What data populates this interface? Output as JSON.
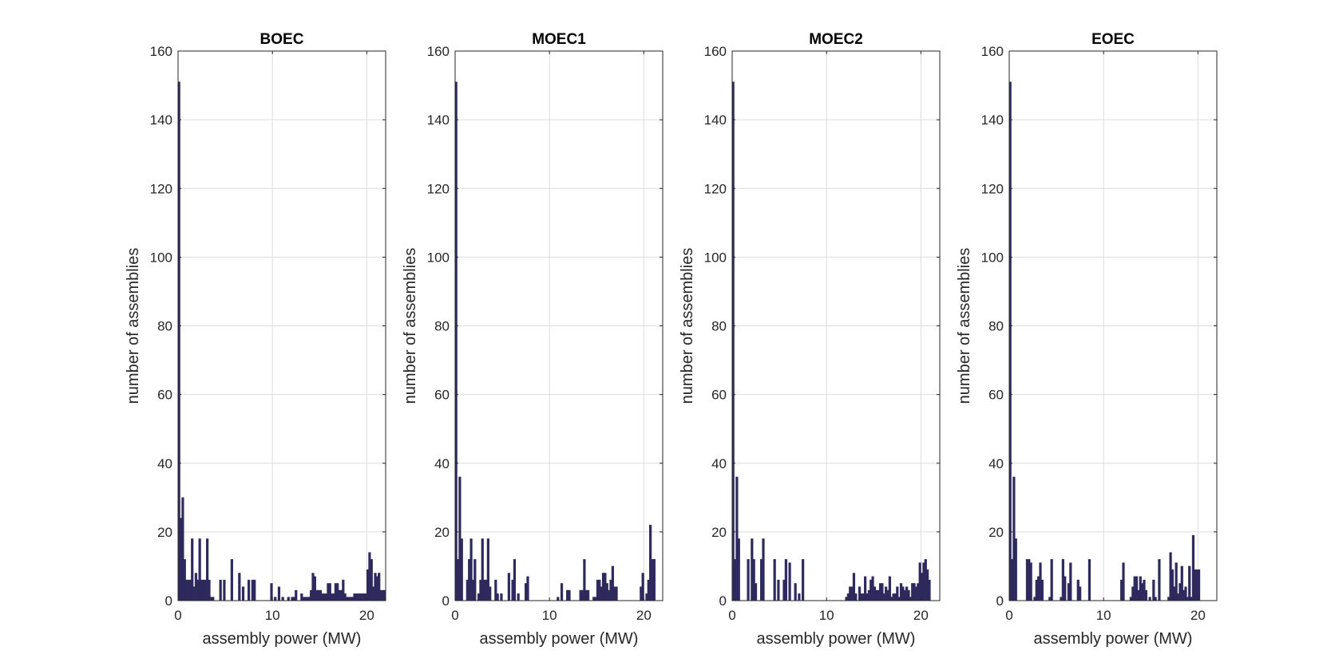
{
  "chart_data": [
    {
      "type": "bar",
      "title": "BOEC",
      "xlabel": "assembly power (MW)",
      "ylabel": "number of assemblies",
      "xlim": [
        0,
        22
      ],
      "ylim": [
        0,
        160
      ],
      "xticks": [
        0,
        10,
        20
      ],
      "yticks": [
        0,
        20,
        40,
        60,
        80,
        100,
        120,
        140,
        160
      ],
      "grid": true,
      "bar_width": 0.22,
      "color": "#2e2a5e",
      "x": [
        0.1,
        0.3,
        0.5,
        0.7,
        0.9,
        1.1,
        1.3,
        1.5,
        1.7,
        1.9,
        2.1,
        2.3,
        2.5,
        2.7,
        2.9,
        3.1,
        3.3,
        3.5,
        3.7,
        4.5,
        4.9,
        5.7,
        6.5,
        6.9,
        7.5,
        7.9,
        8.1,
        9.9,
        10.3,
        10.7,
        11.1,
        11.7,
        12.1,
        12.3,
        12.5,
        13.1,
        13.3,
        13.5,
        13.7,
        13.9,
        14.1,
        14.3,
        14.5,
        14.7,
        14.9,
        15.1,
        15.3,
        15.5,
        15.7,
        15.9,
        16.1,
        16.3,
        16.5,
        16.7,
        16.9,
        17.1,
        17.3,
        17.5,
        17.7,
        17.9,
        18.1,
        18.3,
        18.5,
        18.7,
        18.9,
        19.1,
        19.3,
        19.5,
        19.7,
        19.9,
        20.1,
        20.3,
        20.5,
        20.7,
        20.9,
        21.1,
        21.3,
        21.5,
        21.7,
        21.9
      ],
      "values": [
        151,
        24,
        30,
        12,
        6,
        6,
        6,
        18,
        4,
        8,
        6,
        18,
        6,
        6,
        6,
        18,
        6,
        1,
        1,
        6,
        6,
        12,
        8,
        4,
        6,
        6,
        6,
        5,
        1,
        4,
        1,
        1,
        1,
        1,
        3,
        2,
        1,
        1,
        1,
        1,
        3,
        8,
        7,
        3,
        3,
        3,
        2,
        2,
        2,
        5,
        5,
        2,
        2,
        5,
        5,
        3,
        3,
        6,
        2,
        1,
        1,
        1,
        1,
        2,
        2,
        2,
        2,
        2,
        2,
        2,
        9,
        14,
        12,
        4,
        8,
        7,
        8,
        3,
        3,
        3
      ]
    },
    {
      "type": "bar",
      "title": "MOEC1",
      "xlabel": "assembly power (MW)",
      "ylabel": "number of assemblies",
      "xlim": [
        0,
        22
      ],
      "ylim": [
        0,
        160
      ],
      "xticks": [
        0,
        10,
        20
      ],
      "yticks": [
        0,
        20,
        40,
        60,
        80,
        100,
        120,
        140,
        160
      ],
      "grid": true,
      "bar_width": 0.22,
      "color": "#2e2a5e",
      "x": [
        0.1,
        0.3,
        0.5,
        0.7,
        1.3,
        1.5,
        1.7,
        1.9,
        2.1,
        2.5,
        2.7,
        2.9,
        3.1,
        3.3,
        3.5,
        3.7,
        4.3,
        4.5,
        4.9,
        5.7,
        6.1,
        6.3,
        6.7,
        7.5,
        7.7,
        10.9,
        11.3,
        11.9,
        12.1,
        13.3,
        13.5,
        13.7,
        13.9,
        14.1,
        14.7,
        14.9,
        15.1,
        15.3,
        15.5,
        15.7,
        15.9,
        16.1,
        16.3,
        16.5,
        16.7,
        16.9,
        17.1,
        19.7,
        19.9,
        20.3,
        20.5,
        20.7,
        20.9,
        21.1
      ],
      "values": [
        151,
        12,
        36,
        18,
        6,
        12,
        18,
        6,
        12,
        2,
        6,
        18,
        6,
        6,
        18,
        4,
        6,
        2,
        2,
        8,
        6,
        12,
        2,
        5,
        7,
        1,
        5,
        3,
        3,
        3,
        3,
        12,
        3,
        3,
        1,
        1,
        6,
        6,
        4,
        8,
        8,
        5,
        3,
        6,
        10,
        4,
        4,
        4,
        8,
        2,
        6,
        22,
        12,
        12
      ]
    },
    {
      "type": "bar",
      "title": "MOEC2",
      "xlabel": "assembly power (MW)",
      "ylabel": "number of assemblies",
      "xlim": [
        0,
        22
      ],
      "ylim": [
        0,
        160
      ],
      "xticks": [
        0,
        10,
        20
      ],
      "yticks": [
        0,
        20,
        40,
        60,
        80,
        100,
        120,
        140,
        160
      ],
      "grid": true,
      "bar_width": 0.22,
      "color": "#2e2a5e",
      "x": [
        0.1,
        0.3,
        0.5,
        0.7,
        1.7,
        2.1,
        2.3,
        2.5,
        3.1,
        3.3,
        4.5,
        4.9,
        5.5,
        5.7,
        6.1,
        6.7,
        7.1,
        7.5,
        12.1,
        12.3,
        12.5,
        12.7,
        12.9,
        13.1,
        13.5,
        13.7,
        13.9,
        14.1,
        14.3,
        14.5,
        14.7,
        14.9,
        15.1,
        15.3,
        15.5,
        15.7,
        15.9,
        16.1,
        16.3,
        16.5,
        16.7,
        16.9,
        17.1,
        17.3,
        17.5,
        17.7,
        17.9,
        18.1,
        18.3,
        18.5,
        18.7,
        18.9,
        19.1,
        19.3,
        19.5,
        19.7,
        19.9,
        20.1,
        20.3,
        20.5,
        20.7,
        20.9
      ],
      "values": [
        151,
        12,
        36,
        18,
        12,
        18,
        12,
        5,
        12,
        18,
        12,
        6,
        6,
        12,
        11,
        5,
        2,
        12,
        1,
        2,
        4,
        4,
        8,
        2,
        4,
        2,
        2,
        7,
        2,
        3,
        6,
        7,
        4,
        3,
        3,
        5,
        5,
        2,
        4,
        3,
        7,
        1,
        2,
        2,
        4,
        1,
        5,
        4,
        3,
        4,
        3,
        1,
        5,
        5,
        4,
        5,
        11,
        8,
        11,
        12,
        9,
        6
      ]
    },
    {
      "type": "bar",
      "title": "EOEC",
      "xlabel": "assembly power (MW)",
      "ylabel": "number of assemblies",
      "xlim": [
        0,
        22
      ],
      "ylim": [
        0,
        160
      ],
      "xticks": [
        0,
        10,
        20
      ],
      "yticks": [
        0,
        20,
        40,
        60,
        80,
        100,
        120,
        140,
        160
      ],
      "grid": true,
      "bar_width": 0.22,
      "color": "#2e2a5e",
      "x": [
        0.1,
        0.3,
        0.5,
        0.7,
        1.9,
        2.1,
        2.3,
        2.7,
        2.9,
        3.1,
        3.3,
        3.5,
        4.3,
        4.5,
        5.5,
        5.7,
        5.9,
        6.3,
        6.5,
        7.3,
        7.5,
        8.5,
        11.9,
        12.1,
        12.9,
        13.1,
        13.3,
        13.5,
        13.7,
        13.9,
        14.1,
        14.3,
        14.5,
        14.9,
        15.3,
        15.5,
        15.9,
        16.9,
        17.1,
        17.3,
        17.5,
        17.7,
        17.9,
        18.1,
        18.3,
        18.5,
        18.7,
        18.9,
        19.1,
        19.3,
        19.5,
        19.7,
        19.9,
        20.1
      ],
      "values": [
        151,
        12,
        36,
        18,
        12,
        12,
        11,
        1,
        6,
        7,
        11,
        6,
        1,
        12,
        1,
        12,
        7,
        5,
        11,
        6,
        4,
        12,
        6,
        11,
        1,
        4,
        7,
        7,
        3,
        7,
        5,
        6,
        3,
        1,
        6,
        1,
        12,
        1,
        14,
        9,
        4,
        11,
        2,
        5,
        10,
        3,
        4,
        1,
        10,
        1,
        19,
        9,
        9,
        9
      ]
    }
  ]
}
